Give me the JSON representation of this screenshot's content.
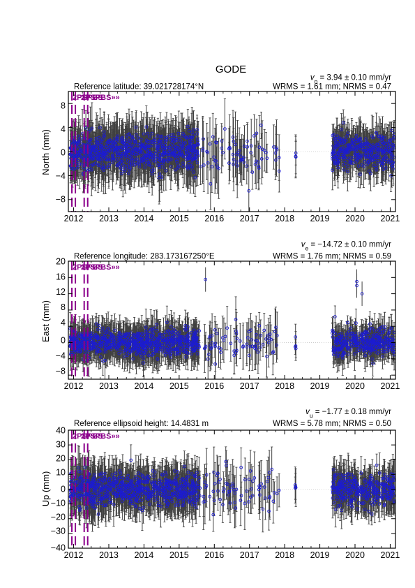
{
  "title": "GODE",
  "colors": {
    "point": "#1c1cd0",
    "errorbar": "#404040",
    "event": "#8b008b",
    "zero_line": "#c8c8c8"
  },
  "x_ticks": [
    "2012",
    "2013",
    "2014",
    "2015",
    "2016",
    "2017",
    "2018",
    "2019",
    "2020",
    "2021"
  ],
  "event_label": "2PSPBS",
  "panels": [
    {
      "id": "north",
      "ylabel": "North (mm)",
      "ref_text": "Reference latitude: 39.021728174°N",
      "velocity_sub": "n",
      "velocity_text": " = 3.94 ± 0.10 mm/yr",
      "wrms_text": "WRMS = 1.61 mm; NRMS = 0.47",
      "yticks": [
        "8",
        "4",
        "0",
        "−4",
        "−8"
      ]
    },
    {
      "id": "east",
      "ylabel": "East (mm)",
      "ref_text": "Reference longitude: 283.173167250°E",
      "velocity_sub": "e",
      "velocity_text": " = −14.72 ± 0.10 mm/yr",
      "wrms_text": "WRMS = 1.76 mm; NRMS = 0.59",
      "yticks": [
        "20",
        "16",
        "12",
        "8",
        "4",
        "0",
        "−4",
        "−8"
      ]
    },
    {
      "id": "up",
      "ylabel": "Up (mm)",
      "ref_text": "Reference ellipsoid height: 14.4831 m",
      "velocity_sub": "u",
      "velocity_text": " = −1.77 ± 0.18 mm/yr",
      "wrms_text": "WRMS = 5.78 mm; NRMS = 0.50",
      "yticks": [
        "40",
        "30",
        "20",
        "10",
        "0",
        "−10",
        "−20",
        "−30",
        "−40"
      ]
    }
  ],
  "chart_data": [
    {
      "type": "scatter",
      "title": "GODE",
      "xlabel": "",
      "ylabel": "North (mm)",
      "xlim": [
        2011.85,
        2021.15
      ],
      "ylim": [
        -10,
        10
      ],
      "grid": false,
      "legend": "none",
      "velocity_mm_per_yr": 3.94,
      "velocity_sigma_mm_per_yr": 0.1,
      "wrms_mm": 1.61,
      "nrms": 0.47,
      "reference": "latitude 39.021728174°N",
      "events": [
        2011.95,
        2012.05,
        2012.3,
        2012.4
      ],
      "series": [
        {
          "name": "",
          "segments": [
            {
              "from": 2011.9,
              "to": 2012.6,
              "sigma_mm": 1.4,
              "error_mm": 3.0,
              "density_per_yr": 400
            },
            {
              "from": 2012.6,
              "to": 2015.55,
              "sigma_mm": 1.6,
              "error_mm": 3.2,
              "density_per_yr": 330
            },
            {
              "from": 2015.55,
              "to": 2017.85,
              "sigma_mm": 1.8,
              "error_mm": 3.8,
              "density_per_yr": 55
            },
            {
              "from": 2018.3,
              "to": 2018.32,
              "sigma_mm": 1.0,
              "error_mm": 2.5,
              "density_per_yr": 200
            },
            {
              "from": 2019.35,
              "to": 2021.12,
              "sigma_mm": 1.5,
              "error_mm": 2.6,
              "density_per_yr": 320
            }
          ]
        }
      ]
    },
    {
      "type": "scatter",
      "title": "GODE",
      "xlabel": "",
      "ylabel": "East (mm)",
      "xlim": [
        2011.85,
        2021.15
      ],
      "ylim": [
        -9,
        20
      ],
      "grid": false,
      "legend": "none",
      "velocity_mm_per_yr": -14.72,
      "velocity_sigma_mm_per_yr": 0.1,
      "wrms_mm": 1.76,
      "nrms": 0.59,
      "reference": "longitude 283.173167250°E",
      "events": [
        2011.95,
        2012.05,
        2012.3,
        2012.4
      ],
      "series": [
        {
          "name": "",
          "segments": [
            {
              "from": 2011.9,
              "to": 2012.6,
              "sigma_mm": 1.5,
              "error_mm": 3.2,
              "density_per_yr": 400
            },
            {
              "from": 2012.6,
              "to": 2015.55,
              "sigma_mm": 1.6,
              "error_mm": 3.4,
              "density_per_yr": 330
            },
            {
              "from": 2015.55,
              "to": 2017.85,
              "sigma_mm": 2.0,
              "error_mm": 4.2,
              "density_per_yr": 55
            },
            {
              "from": 2018.3,
              "to": 2018.32,
              "sigma_mm": 1.0,
              "error_mm": 2.5,
              "density_per_yr": 200
            },
            {
              "from": 2019.35,
              "to": 2021.12,
              "sigma_mm": 1.7,
              "error_mm": 3.0,
              "density_per_yr": 320
            }
          ],
          "outliers": [
            [
              2015.75,
              15.5
            ],
            [
              2020.05,
              15
            ],
            [
              2020.05,
              14
            ],
            [
              2020.2,
              12
            ]
          ]
        }
      ]
    },
    {
      "type": "scatter",
      "title": "GODE",
      "xlabel": "",
      "ylabel": "Up (mm)",
      "xlim": [
        2011.85,
        2021.15
      ],
      "ylim": [
        -40,
        40
      ],
      "grid": false,
      "legend": "none",
      "velocity_mm_per_yr": -1.77,
      "velocity_sigma_mm_per_yr": 0.18,
      "wrms_mm": 5.78,
      "nrms": 0.5,
      "reference": "ellipsoid height 14.4831 m",
      "events": [
        2011.95,
        2012.05,
        2012.3,
        2012.4
      ],
      "series": [
        {
          "name": "",
          "segments": [
            {
              "from": 2011.9,
              "to": 2012.6,
              "sigma_mm": 5.5,
              "error_mm": 12,
              "density_per_yr": 400
            },
            {
              "from": 2012.6,
              "to": 2015.55,
              "sigma_mm": 5.5,
              "error_mm": 11,
              "density_per_yr": 330
            },
            {
              "from": 2015.55,
              "to": 2017.85,
              "sigma_mm": 7.0,
              "error_mm": 13,
              "density_per_yr": 55
            },
            {
              "from": 2018.3,
              "to": 2018.32,
              "sigma_mm": 4.0,
              "error_mm": 9,
              "density_per_yr": 200
            },
            {
              "from": 2019.35,
              "to": 2021.12,
              "sigma_mm": 5.5,
              "error_mm": 10,
              "density_per_yr": 320
            }
          ]
        }
      ]
    }
  ]
}
